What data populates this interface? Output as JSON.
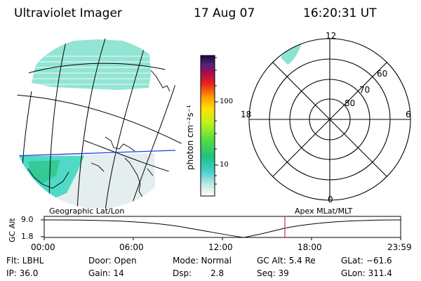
{
  "header": {
    "instrument": "Ultraviolet Imager",
    "date": "17 Aug 07",
    "time": "16:20:31 UT"
  },
  "colorbar": {
    "unit_label": "photon cm⁻²s⁻¹",
    "ticks": [
      "100",
      "10"
    ]
  },
  "polar_plot": {
    "mlt_labels": [
      "12",
      "18",
      "6",
      "0"
    ],
    "lat_labels": [
      "60",
      "70",
      "80"
    ]
  },
  "map_panel": {
    "label": "Geographic Lat/Lon"
  },
  "polar_panel": {
    "label": "Apex MLat/MLT"
  },
  "altitude_plot": {
    "axis_label": "GC Alt",
    "y_ticks": [
      "9.0",
      "1.8"
    ],
    "time_ticks": [
      "00:00",
      "06:00",
      "12:00",
      "18:00",
      "23:59"
    ],
    "marker_color": "#cc3344"
  },
  "status": {
    "filter": "Flt: LBHL",
    "ip": "IP: 36.0",
    "door": "Door: Open",
    "gain": "Gain: 14",
    "mode": "Mode: Normal",
    "dsp_label": "Dsp:",
    "dsp_value": "2.8",
    "gc_alt": "GC Alt: 5.4 Re",
    "seq": "Seq: 39",
    "glat": "GLat: −61.6",
    "glon": "GLon: 311.4"
  }
}
